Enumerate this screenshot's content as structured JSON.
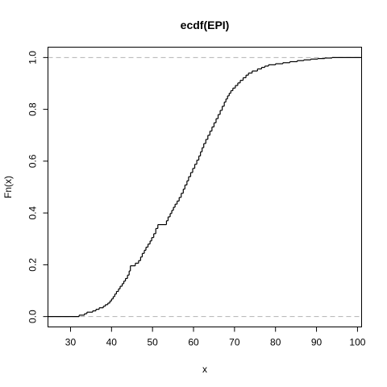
{
  "chart_data": {
    "type": "step",
    "title": "ecdf(EPI)",
    "xlabel": "x",
    "ylabel": "Fn(x)",
    "xlim": [
      24.5,
      101.0
    ],
    "ylim": [
      -0.04,
      1.04
    ],
    "x_ticks": [
      30,
      40,
      50,
      60,
      70,
      80,
      90,
      100
    ],
    "x_tick_labels": [
      "30",
      "40",
      "50",
      "60",
      "70",
      "80",
      "90",
      "100"
    ],
    "y_ticks": [
      0.0,
      0.2,
      0.4,
      0.6,
      0.8,
      1.0
    ],
    "y_tick_labels": [
      "0.0",
      "0.2",
      "0.4",
      "0.6",
      "0.8",
      "1.0"
    ],
    "reference_lines": [
      0,
      1
    ],
    "series": [
      {
        "name": "Fn(x)",
        "x": [
          32.1,
          33.4,
          34.0,
          35.4,
          36.2,
          37.0,
          38.0,
          38.5,
          39.1,
          39.6,
          40.0,
          40.4,
          40.8,
          41.2,
          41.7,
          42.1,
          42.6,
          43.0,
          43.4,
          43.9,
          44.3,
          44.6,
          45.8,
          46.6,
          47.1,
          47.5,
          48.0,
          48.4,
          48.9,
          49.4,
          49.8,
          50.3,
          50.8,
          51.3,
          53.4,
          53.8,
          54.3,
          54.7,
          55.1,
          55.5,
          56.0,
          56.5,
          57.0,
          57.5,
          57.9,
          58.4,
          58.8,
          59.3,
          59.8,
          60.3,
          60.8,
          61.3,
          61.7,
          62.1,
          62.5,
          63.0,
          63.5,
          64.0,
          64.5,
          65.0,
          65.5,
          66.0,
          66.5,
          67.0,
          67.5,
          67.9,
          68.3,
          68.7,
          69.1,
          69.6,
          70.2,
          70.8,
          71.4,
          72.1,
          72.8,
          73.4,
          74.3,
          75.6,
          76.6,
          77.4,
          78.3,
          80.0,
          81.8,
          83.5,
          85.3,
          86.9,
          88.6,
          90.3,
          92.0,
          93.8
        ],
        "y": [
          0.0055,
          0.011,
          0.017,
          0.022,
          0.028,
          0.034,
          0.04,
          0.046,
          0.052,
          0.06,
          0.068,
          0.077,
          0.087,
          0.097,
          0.107,
          0.117,
          0.127,
          0.137,
          0.147,
          0.16,
          0.176,
          0.196,
          0.206,
          0.216,
          0.23,
          0.244,
          0.256,
          0.268,
          0.28,
          0.292,
          0.305,
          0.32,
          0.34,
          0.355,
          0.37,
          0.385,
          0.398,
          0.41,
          0.422,
          0.434,
          0.446,
          0.46,
          0.476,
          0.492,
          0.508,
          0.524,
          0.54,
          0.556,
          0.572,
          0.588,
          0.604,
          0.62,
          0.636,
          0.652,
          0.668,
          0.684,
          0.7,
          0.716,
          0.732,
          0.748,
          0.764,
          0.78,
          0.796,
          0.812,
          0.828,
          0.84,
          0.852,
          0.862,
          0.872,
          0.882,
          0.892,
          0.902,
          0.912,
          0.922,
          0.932,
          0.94,
          0.948,
          0.956,
          0.962,
          0.967,
          0.972,
          0.976,
          0.98,
          0.984,
          0.988,
          0.991,
          0.994,
          0.996,
          0.998,
          1.0
        ]
      }
    ]
  }
}
